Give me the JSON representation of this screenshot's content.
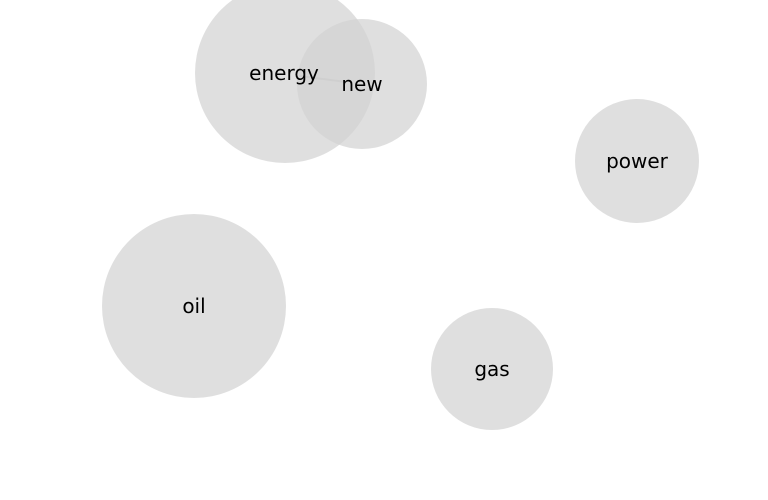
{
  "diagram": {
    "nodes": [
      {
        "id": "energy",
        "label": "energy"
      },
      {
        "id": "new",
        "label": "new"
      },
      {
        "id": "power",
        "label": "power"
      },
      {
        "id": "oil",
        "label": "oil"
      },
      {
        "id": "gas",
        "label": "gas"
      }
    ],
    "edges": [
      {
        "from": "energy",
        "to": "new"
      }
    ],
    "colors": {
      "node_fill": "#d3d3d3",
      "edge": "#a9a9a9",
      "text": "#000000",
      "background": "#ffffff"
    }
  }
}
